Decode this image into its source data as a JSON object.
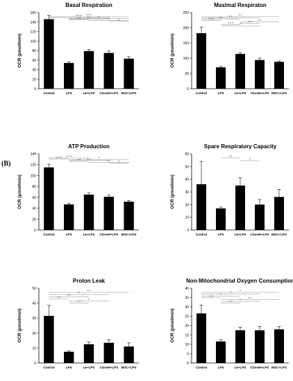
{
  "figure_label": "(B)",
  "chart_data": [
    {
      "type": "bar",
      "title": "Basal Respiration",
      "ylabel": "OCR (pmol/min)",
      "categories": [
        "Control",
        "LPS",
        "L6+LPS",
        "Clone9+LPS",
        "MSC+LPS"
      ],
      "values": [
        146,
        54,
        79,
        75,
        63
      ],
      "errors": [
        8,
        2,
        3,
        4,
        4
      ],
      "ylim": [
        0,
        160
      ],
      "yticks": [
        "0",
        "20",
        "40",
        "60",
        "80",
        "100",
        "120",
        "140",
        "160"
      ],
      "sig_bars": [
        {
          "from": 0,
          "to": 4,
          "label": "* * *"
        },
        {
          "from": 0,
          "to": 3,
          "label": "* * *"
        },
        {
          "from": 1,
          "to": 4,
          "label": "*"
        },
        {
          "from": 1,
          "to": 3,
          "label": "* *"
        },
        {
          "from": 1,
          "to": 2,
          "label": "* *"
        },
        {
          "from": 2,
          "to": 4,
          "label": "*"
        },
        {
          "from": 3,
          "to": 4,
          "label": "*"
        }
      ]
    },
    {
      "type": "bar",
      "title": "Maximal Respiraton",
      "ylabel": "OCR (pmol/min)",
      "categories": [
        "Control",
        "LPS",
        "L6+LPS",
        "Clone9+LPS",
        "MSC+LPS"
      ],
      "values": [
        182,
        70,
        114,
        94,
        88
      ],
      "errors": [
        20,
        3,
        4,
        6,
        3
      ],
      "ylim": [
        0,
        250
      ],
      "yticks": [
        "0",
        "50",
        "100",
        "150",
        "200",
        "250"
      ],
      "sig_bars": [
        {
          "from": 0,
          "to": 4,
          "label": "* *"
        },
        {
          "from": 0,
          "to": 3,
          "label": "* *"
        },
        {
          "from": 0,
          "to": 2,
          "label": "* *"
        },
        {
          "from": 0,
          "to": 1,
          "label": "* * *"
        },
        {
          "from": 2,
          "to": 4,
          "label": "* *"
        },
        {
          "from": 2,
          "to": 3,
          "label": "* *"
        },
        {
          "from": 1,
          "to": 2,
          "label": "* * *"
        },
        {
          "from": 1,
          "to": 3,
          "label": "*"
        }
      ]
    },
    {
      "type": "bar",
      "title": "ATP Production",
      "ylabel": "OCR (pmol/min)",
      "categories": [
        "Control",
        "LPS",
        "L6+LPS",
        "Clone9+LPS",
        "MSC+LPS"
      ],
      "values": [
        115,
        47,
        65,
        61,
        52
      ],
      "errors": [
        6,
        2,
        3,
        3,
        2
      ],
      "ylim": [
        0,
        140
      ],
      "yticks": [
        "0",
        "20",
        "40",
        "60",
        "80",
        "100",
        "120",
        "140"
      ],
      "sig_bars": [
        {
          "from": 0,
          "to": 2,
          "label": "* * *"
        },
        {
          "from": 0,
          "to": 1,
          "label": "* * *"
        },
        {
          "from": 1,
          "to": 4,
          "label": "*"
        },
        {
          "from": 1,
          "to": 3,
          "label": "* *"
        },
        {
          "from": 1,
          "to": 2,
          "label": "* *"
        },
        {
          "from": 2,
          "to": 4,
          "label": "* *"
        },
        {
          "from": 3,
          "to": 4,
          "label": "*"
        }
      ]
    },
    {
      "type": "bar",
      "title": "Spare Respiratory Capacity",
      "ylabel": "OCR (pmol/min)",
      "categories": [
        "Control",
        "LPS",
        "L6+LPS",
        "Clone9+LPS",
        "MSC+LPS"
      ],
      "values": [
        36,
        17,
        35,
        20,
        26
      ],
      "errors": [
        18,
        1,
        6,
        4,
        6
      ],
      "ylim": [
        0,
        60
      ],
      "yticks": [
        "0",
        "10",
        "20",
        "30",
        "40",
        "50",
        "60"
      ],
      "sig_bars": [
        {
          "from": 1,
          "to": 2,
          "label": "* *"
        },
        {
          "from": 2,
          "to": 3,
          "label": "*"
        }
      ]
    },
    {
      "type": "bar",
      "title": "Proton Leak",
      "ylabel": "OCR (pmol/min)",
      "categories": [
        "Control",
        "LPS",
        "L6+LPS",
        "Clone9+LPS",
        "MSC+LPS"
      ],
      "values": [
        31.5,
        7.5,
        12.5,
        13.5,
        11
      ],
      "errors": [
        7,
        0.5,
        1.5,
        2,
        2.5
      ],
      "ylim": [
        0,
        50
      ],
      "yticks": [
        "0",
        "10",
        "20",
        "30",
        "40",
        "50"
      ],
      "sig_bars": [
        {
          "from": 0,
          "to": 4,
          "label": "* *"
        },
        {
          "from": 0,
          "to": 3,
          "label": "*"
        },
        {
          "from": 0,
          "to": 2,
          "label": "* *"
        },
        {
          "from": 0,
          "to": 1,
          "label": "* *"
        },
        {
          "from": 1,
          "to": 3,
          "label": "*"
        },
        {
          "from": 1,
          "to": 2,
          "label": "* *"
        }
      ]
    },
    {
      "type": "bar",
      "title": "Non-Mitochondrial Oxygen Consumption",
      "ylabel": "OCR (pmol/min)",
      "categories": [
        "Control",
        "LPS",
        "L6+LPS",
        "Clone9+LPS",
        "MSC+LPS"
      ],
      "values": [
        26.5,
        11.5,
        17.5,
        17.5,
        18
      ],
      "errors": [
        4.5,
        1,
        1.5,
        2,
        1.5
      ],
      "ylim": [
        0,
        40
      ],
      "yticks": [
        "0",
        "5",
        "10",
        "15",
        "20",
        "25",
        "30",
        "35",
        "40"
      ],
      "sig_bars": [
        {
          "from": 0,
          "to": 4,
          "label": "*"
        },
        {
          "from": 0,
          "to": 3,
          "label": "*"
        },
        {
          "from": 0,
          "to": 2,
          "label": "*"
        },
        {
          "from": 0,
          "to": 1,
          "label": "* *"
        },
        {
          "from": 1,
          "to": 4,
          "label": "* *"
        },
        {
          "from": 1,
          "to": 3,
          "label": "*"
        },
        {
          "from": 1,
          "to": 2,
          "label": "* *"
        }
      ]
    }
  ]
}
